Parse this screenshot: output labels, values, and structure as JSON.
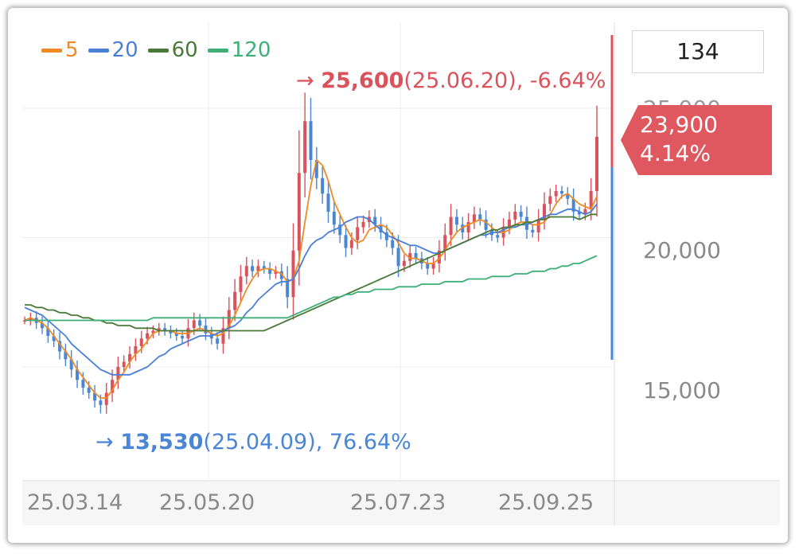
{
  "box_value": "134",
  "legend": [
    {
      "label": "5",
      "color": "#f08a24"
    },
    {
      "label": "20",
      "color": "#4a7fd8"
    },
    {
      "label": "60",
      "color": "#4a7a3a"
    },
    {
      "label": "120",
      "color": "#3fae78"
    }
  ],
  "high_annotation": {
    "arrow": "→",
    "price": "25,600",
    "detail": "(25.06.20), -6.64%"
  },
  "low_annotation": {
    "arrow": "→",
    "price": "13,530",
    "detail": "(25.04.09), 76.64%"
  },
  "current": {
    "price": "23,900",
    "change": "4.14%"
  },
  "colors": {
    "up": "#d9525c",
    "down": "#4a86d6",
    "current_bg": "#e0585f"
  },
  "y_axis_labels": [
    "25,000",
    "20,000",
    "15,000"
  ],
  "x_axis_labels": [
    "25.03.14",
    "25.05.20",
    "25.07.23",
    "25.09.25"
  ],
  "chart_data": {
    "type": "candlestick",
    "ylim": [
      12500,
      26500
    ],
    "yticks": [
      15000,
      20000,
      25000
    ],
    "x_ticks": [
      "25.03.14",
      "25.05.20",
      "25.07.23",
      "25.09.25"
    ],
    "grid": true,
    "legend_position": "top-left",
    "high": {
      "value": 25600,
      "date": "25.06.20"
    },
    "low": {
      "value": 13530,
      "date": "25.04.09"
    },
    "current_value": 23900,
    "closes": [
      16800,
      16900,
      16700,
      16500,
      16200,
      16000,
      15600,
      15300,
      14900,
      14500,
      14200,
      14000,
      13700,
      13530,
      14000,
      14500,
      15000,
      15200,
      15500,
      15800,
      16100,
      16300,
      16400,
      16500,
      16400,
      16300,
      16200,
      16100,
      16500,
      16800,
      16600,
      16300,
      16100,
      15900,
      16500,
      17200,
      17900,
      18500,
      18900,
      18700,
      18900,
      18800,
      18600,
      18700,
      18400,
      17700,
      19500,
      22500,
      24500,
      23000,
      22300,
      21700,
      21000,
      20500,
      20100,
      19600,
      19900,
      20400,
      20600,
      20800,
      20500,
      20200,
      19900,
      19600,
      18900,
      19100,
      19400,
      19200,
      19000,
      18800,
      19000,
      19500,
      20100,
      20800,
      20500,
      20200,
      20600,
      20900,
      20700,
      20300,
      20100,
      20000,
      20400,
      20700,
      21000,
      20800,
      20300,
      20200,
      20700,
      21300,
      21600,
      21800,
      21700,
      21500,
      21000,
      20900,
      21100,
      21800,
      23900
    ],
    "ma_series": [
      {
        "label": "5",
        "values": [
          16800,
          16900,
          16800,
          16700,
          16500,
          16200,
          15900,
          15600,
          15300,
          14900,
          14600,
          14300,
          14000,
          13800,
          13800,
          14100,
          14500,
          14800,
          15200,
          15500,
          15700,
          16000,
          16300,
          16400,
          16400,
          16400,
          16300,
          16300,
          16300,
          16400,
          16500,
          16400,
          16300,
          16200,
          16300,
          16600,
          17000,
          17500,
          18000,
          18400,
          18700,
          18800,
          18800,
          18700,
          18600,
          18300,
          18400,
          19100,
          20600,
          22000,
          23000,
          22800,
          22200,
          21400,
          20900,
          20400,
          20000,
          19800,
          19900,
          20300,
          20400,
          20500,
          20400,
          20100,
          19800,
          19400,
          19200,
          19200,
          19100,
          19000,
          19000,
          19200,
          19500,
          19900,
          20200,
          20400,
          20500,
          20600,
          20700,
          20600,
          20400,
          20200,
          20200,
          20300,
          20500,
          20600,
          20600,
          20500,
          20500,
          20600,
          20900,
          21300,
          21600,
          21700,
          21500,
          21300,
          21200,
          21100,
          21600
        ]
      },
      {
        "label": "20",
        "values": [
          17300,
          17200,
          17100,
          17000,
          16800,
          16600,
          16400,
          16200,
          15900,
          15700,
          15500,
          15300,
          15100,
          14900,
          14800,
          14700,
          14700,
          14700,
          14700,
          14800,
          14900,
          15000,
          15200,
          15400,
          15500,
          15700,
          15800,
          15900,
          16000,
          16100,
          16200,
          16200,
          16200,
          16300,
          16400,
          16500,
          16600,
          16800,
          17100,
          17300,
          17600,
          17800,
          18000,
          18200,
          18300,
          18300,
          18400,
          18800,
          19300,
          19700,
          19900,
          20000,
          20200,
          20300,
          20400,
          20600,
          20700,
          20800,
          20800,
          20700,
          20500,
          20300,
          20100,
          20000,
          19900,
          19800,
          19700,
          19700,
          19600,
          19500,
          19400,
          19400,
          19500,
          19600,
          19700,
          19800,
          19900,
          20000,
          20100,
          20100,
          20200,
          20200,
          20300,
          20400,
          20400,
          20500,
          20500,
          20600,
          20700,
          20800,
          20900,
          20900,
          21000,
          21100,
          21100,
          21000,
          20900,
          21000,
          21300
        ]
      },
      {
        "label": "60",
        "values": [
          17400,
          17400,
          17300,
          17300,
          17200,
          17200,
          17100,
          17100,
          17000,
          17000,
          16900,
          16900,
          16800,
          16800,
          16700,
          16700,
          16600,
          16600,
          16600,
          16500,
          16500,
          16500,
          16500,
          16400,
          16400,
          16400,
          16400,
          16400,
          16400,
          16400,
          16400,
          16400,
          16400,
          16400,
          16400,
          16400,
          16400,
          16400,
          16400,
          16400,
          16400,
          16400,
          16500,
          16600,
          16700,
          16800,
          16900,
          17000,
          17100,
          17200,
          17300,
          17400,
          17500,
          17600,
          17700,
          17800,
          17900,
          18000,
          18100,
          18200,
          18300,
          18400,
          18500,
          18600,
          18700,
          18800,
          18900,
          19000,
          19100,
          19200,
          19300,
          19400,
          19500,
          19600,
          19700,
          19800,
          19900,
          20000,
          20100,
          20200,
          20300,
          20300,
          20400,
          20400,
          20500,
          20500,
          20600,
          20600,
          20700,
          20700,
          20800,
          20800,
          20800,
          20800,
          20800,
          20700,
          20800,
          20900,
          20900
        ]
      },
      {
        "label": "120",
        "values": [
          16800,
          16800,
          16800,
          16800,
          16800,
          16800,
          16800,
          16800,
          16800,
          16800,
          16800,
          16800,
          16800,
          16800,
          16800,
          16800,
          16800,
          16800,
          16800,
          16800,
          16800,
          16800,
          16900,
          16900,
          16900,
          16900,
          16900,
          16900,
          16900,
          16900,
          16900,
          16900,
          16900,
          16900,
          16900,
          16900,
          16900,
          16900,
          16900,
          16900,
          16900,
          16900,
          16900,
          16900,
          16900,
          16900,
          17000,
          17100,
          17200,
          17300,
          17400,
          17500,
          17600,
          17700,
          17700,
          17800,
          17800,
          17900,
          17900,
          17900,
          18000,
          18000,
          18000,
          18000,
          18100,
          18100,
          18100,
          18100,
          18200,
          18200,
          18200,
          18200,
          18300,
          18300,
          18300,
          18300,
          18400,
          18400,
          18400,
          18400,
          18500,
          18500,
          18500,
          18500,
          18600,
          18600,
          18600,
          18700,
          18700,
          18700,
          18800,
          18800,
          18900,
          18900,
          19000,
          19000,
          19100,
          19200,
          19300
        ]
      }
    ]
  }
}
